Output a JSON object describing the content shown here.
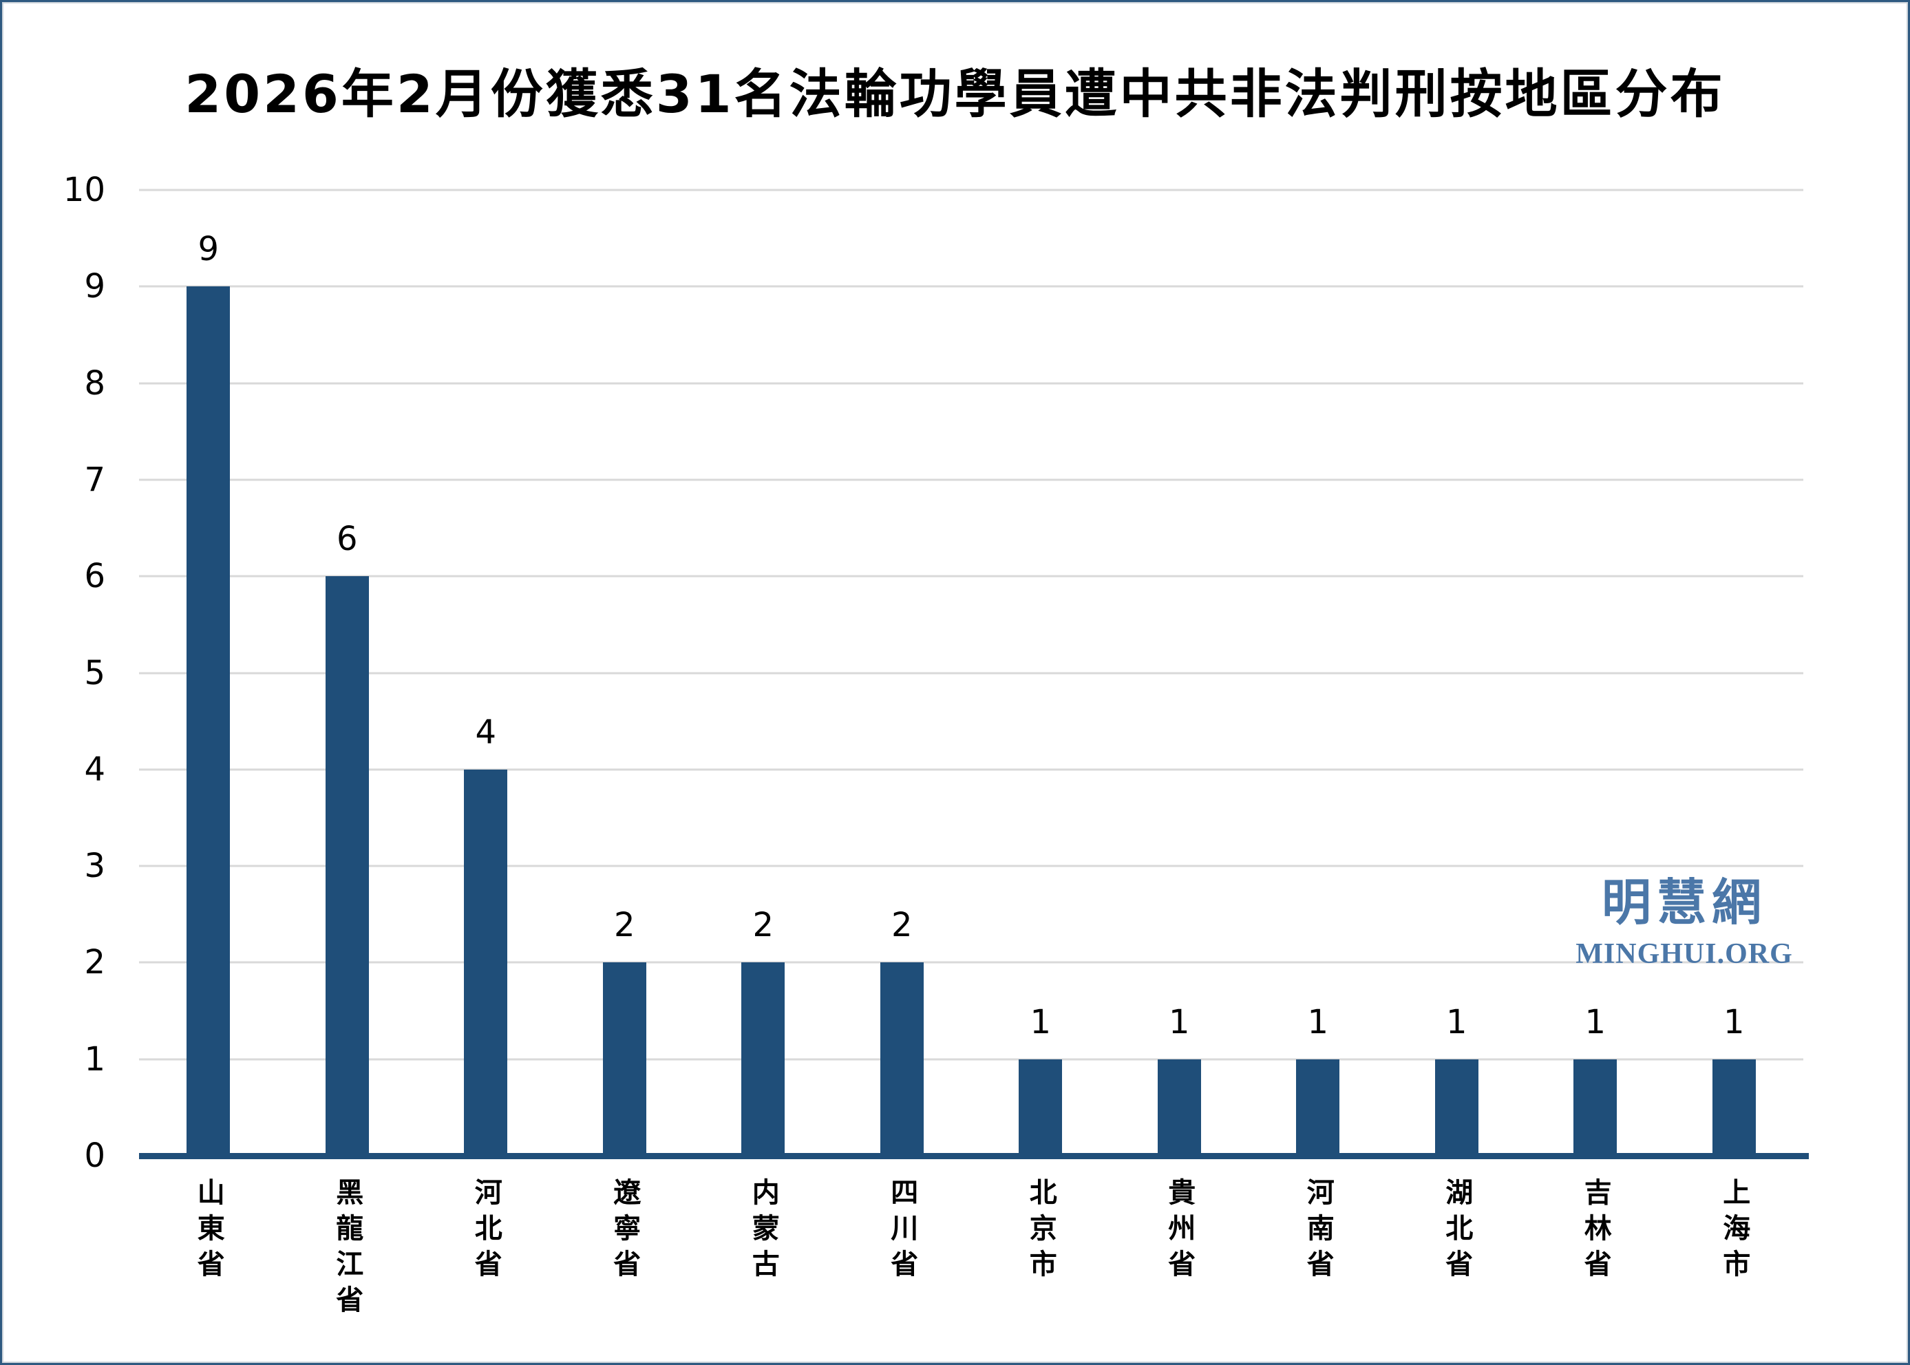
{
  "title": "2026年2月份獲悉31名法輪功學員遭中共非法判刑按地區分布",
  "watermark": {
    "cn": "明慧網",
    "en": "MINGHUI.ORG"
  },
  "colors": {
    "bar": "#1F4E79",
    "axis_line": "#1F4E79",
    "gridline": "#D9D9D9",
    "text": "#000000",
    "watermark": "#4B77A8",
    "frame_border": "#2E5980"
  },
  "chart_data": {
    "type": "bar",
    "title": "2026年2月份獲悉31名法輪功學員遭中共非法判刑按地區分布",
    "categories": [
      "山東省",
      "黑龍江省",
      "河北省",
      "遼寧省",
      "内蒙古",
      "四川省",
      "北京市",
      "貴州省",
      "河南省",
      "湖北省",
      "吉林省",
      "上海市"
    ],
    "values": [
      9,
      6,
      4,
      2,
      2,
      2,
      1,
      1,
      1,
      1,
      1,
      1
    ],
    "total": 31,
    "xlabel": "",
    "ylabel": "",
    "ylim": [
      0,
      10
    ],
    "yticks": [
      0,
      1,
      2,
      3,
      4,
      5,
      6,
      7,
      8,
      9,
      10
    ],
    "grid": "horizontal",
    "legend": "none",
    "bar_labels": true,
    "xlabel_orientation": "vertical"
  }
}
